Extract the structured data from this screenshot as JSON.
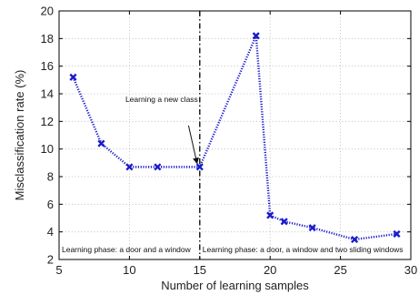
{
  "chart_data": {
    "type": "line",
    "xlabel": "Number of learning samples",
    "ylabel": "Misclassification rate (%)",
    "xlim": [
      5,
      30
    ],
    "ylim": [
      2,
      20
    ],
    "xticks": [
      5,
      10,
      15,
      20,
      25,
      30
    ],
    "yticks": [
      2,
      4,
      6,
      8,
      10,
      12,
      14,
      16,
      18,
      20
    ],
    "grid": true,
    "series": [
      {
        "color": "#1a1acc",
        "line_style": "dotted",
        "marker": "x",
        "x": [
          6,
          8,
          10,
          12,
          15,
          19,
          20,
          21,
          23,
          26,
          29
        ],
        "y": [
          15.2,
          10.4,
          8.7,
          8.7,
          8.7,
          18.2,
          5.2,
          4.75,
          4.3,
          3.45,
          3.85
        ]
      }
    ],
    "vertical_line": {
      "x": 15,
      "style": "dash-dot",
      "color": "#000000"
    },
    "annotations": {
      "new_class": {
        "text": "Learning a new class",
        "arrow_to": [
          15,
          8.7
        ]
      },
      "phase1": "Learning phase: a door and a window",
      "phase2": "Learning phase: a door, a window and two sliding windows"
    }
  }
}
